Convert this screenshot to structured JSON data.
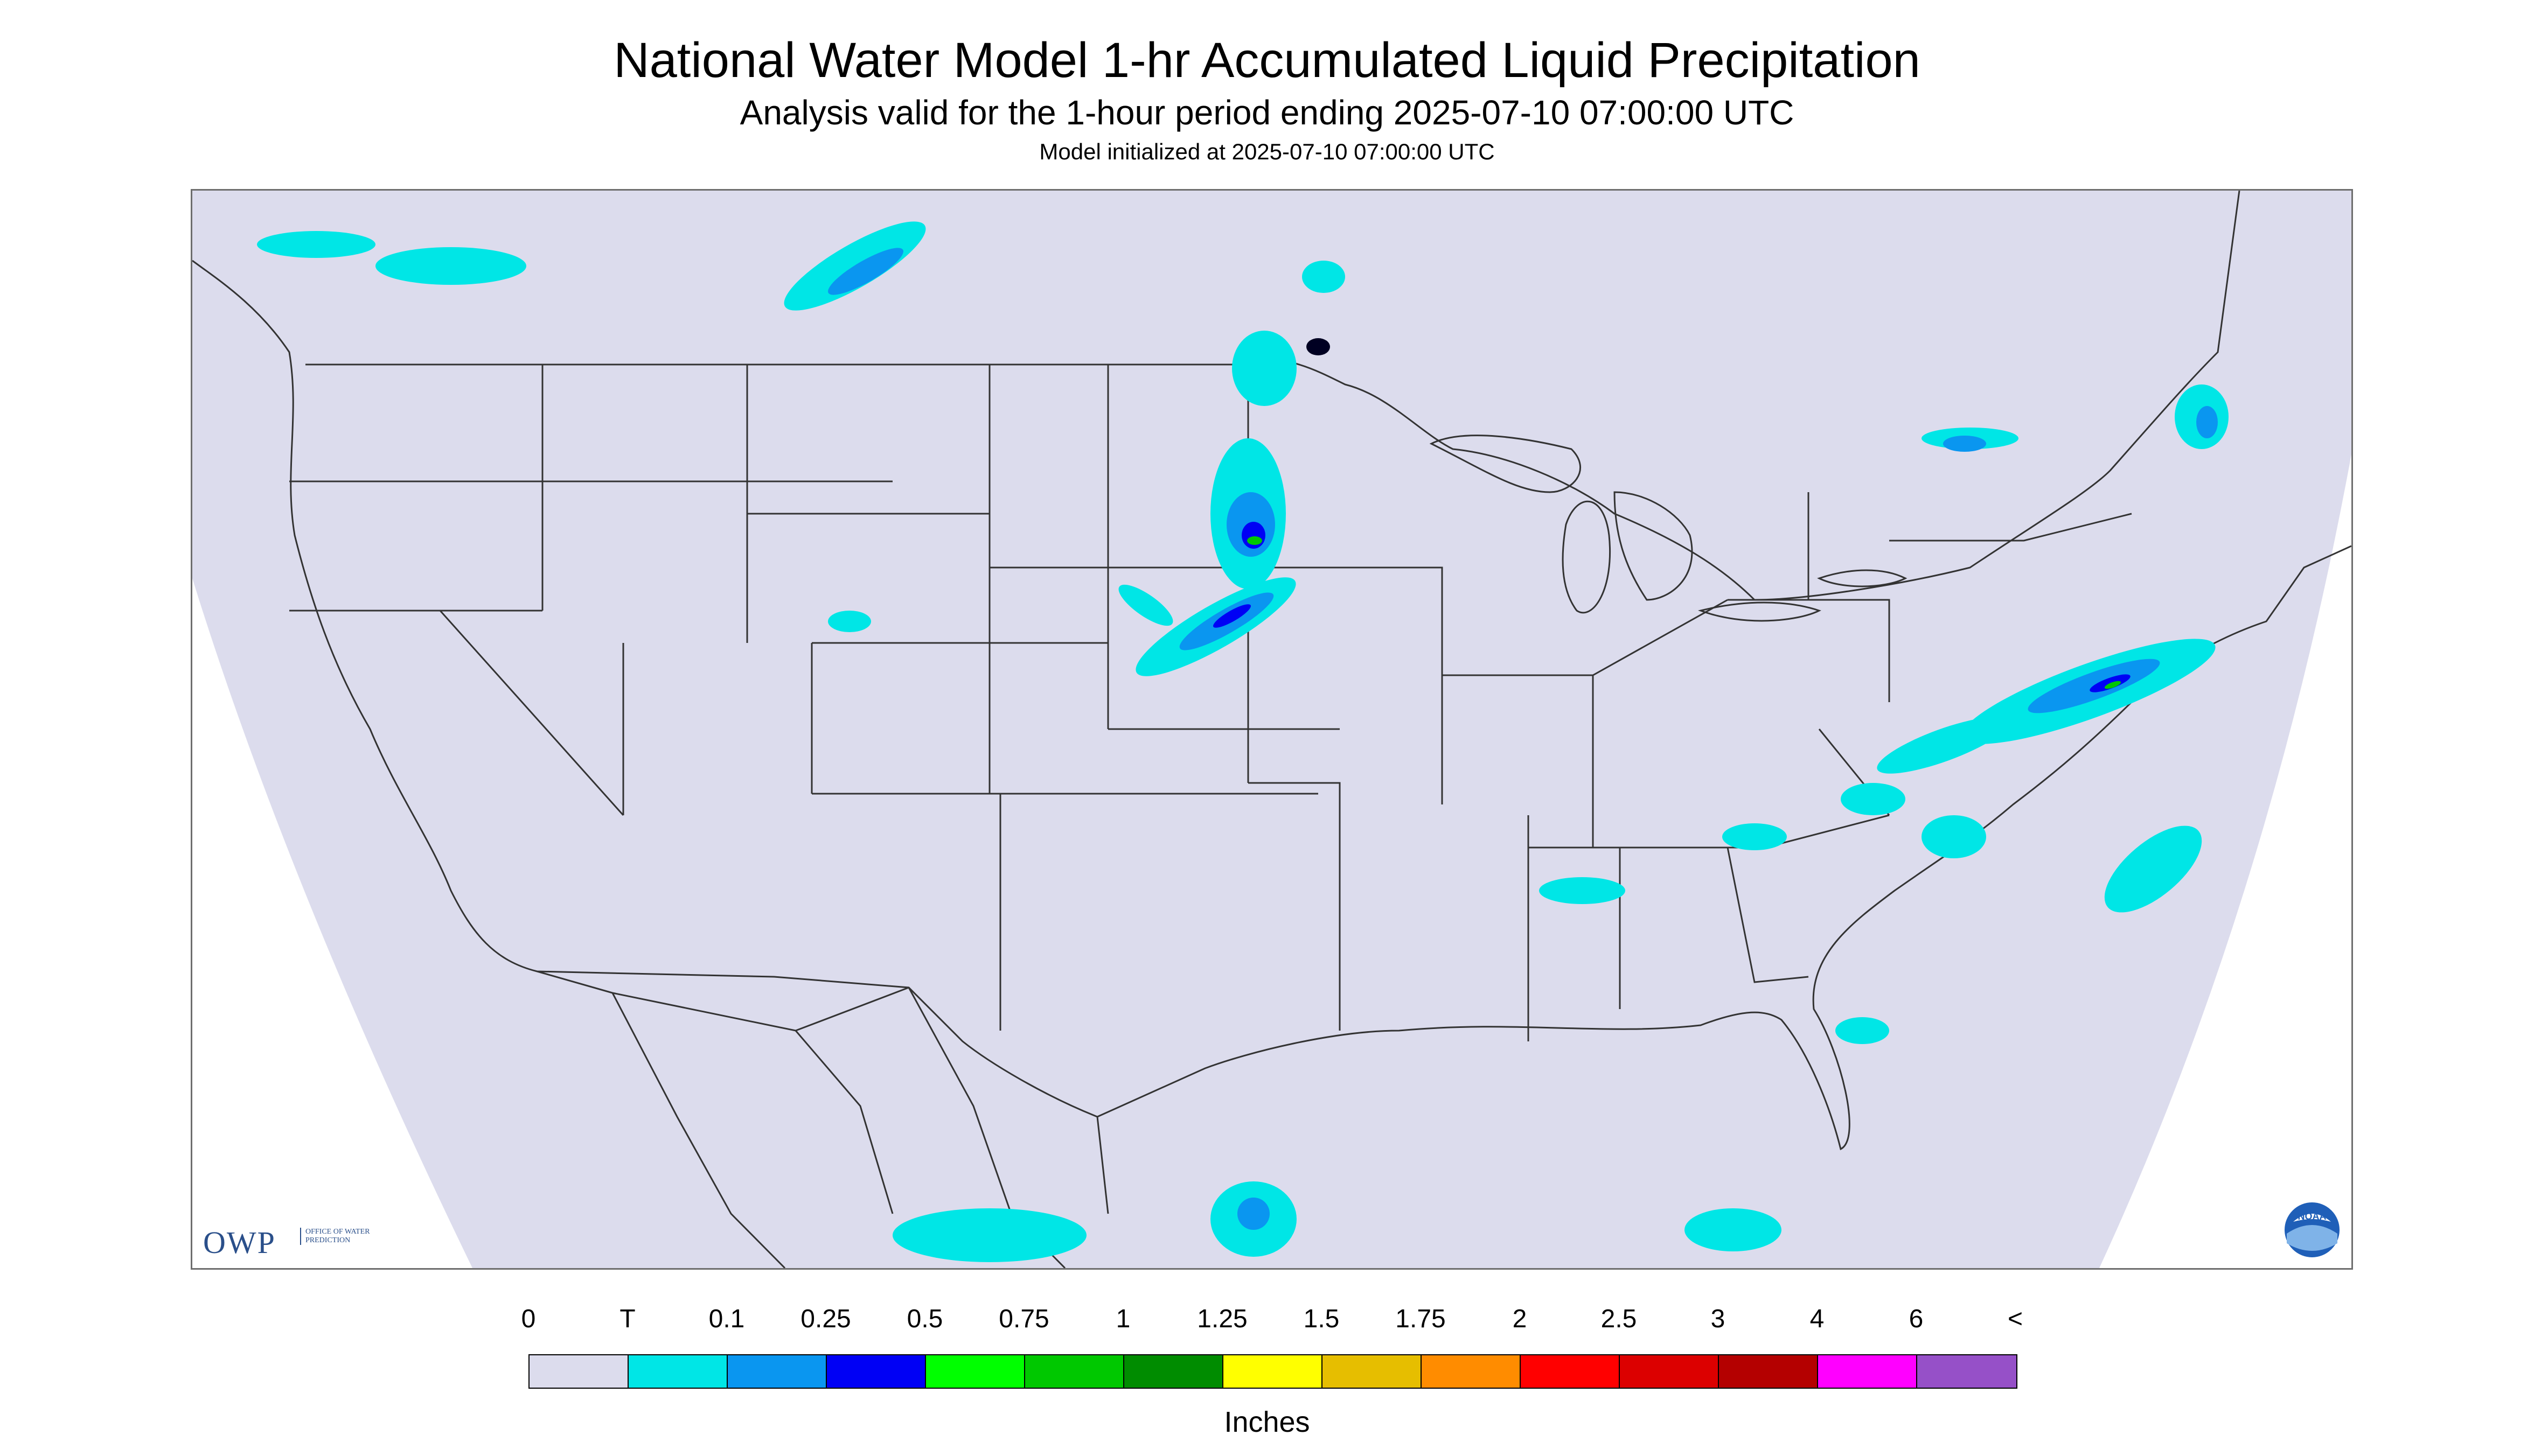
{
  "title": "National Water Model 1-hr Accumulated Liquid Precipitation",
  "subtitle": "Analysis valid for the 1-hour period ending 2025-07-10 07:00:00 UTC",
  "init_line": "Model initialized at 2025-07-10 07:00:00 UTC",
  "logo_owp": {
    "text": "OWP",
    "sub": "OFFICE OF WATER PREDICTION"
  },
  "logo_noaa": {
    "text": "NOAA",
    "icon": "noaa-logo-icon"
  },
  "map": {
    "projection": "lambert-conformal",
    "domain_color": "#dcdced",
    "outside_color": "#ffffff",
    "boundary_color": "#333333"
  },
  "legend": {
    "units_label": "Inches",
    "tick_labels": [
      "0",
      "T",
      "0.1",
      "0.25",
      "0.5",
      "0.75",
      "1",
      "1.25",
      "1.5",
      "1.75",
      "2",
      "2.5",
      "3",
      "4",
      "6",
      "<"
    ],
    "colors": [
      "#dcdced",
      "#00e6e6",
      "#0a96f0",
      "#0000f5",
      "#00ff00",
      "#00c800",
      "#008c00",
      "#ffff00",
      "#e6be00",
      "#ff8c00",
      "#ff0000",
      "#dc0000",
      "#b40000",
      "#ff00ff",
      "#9650c8"
    ]
  }
}
